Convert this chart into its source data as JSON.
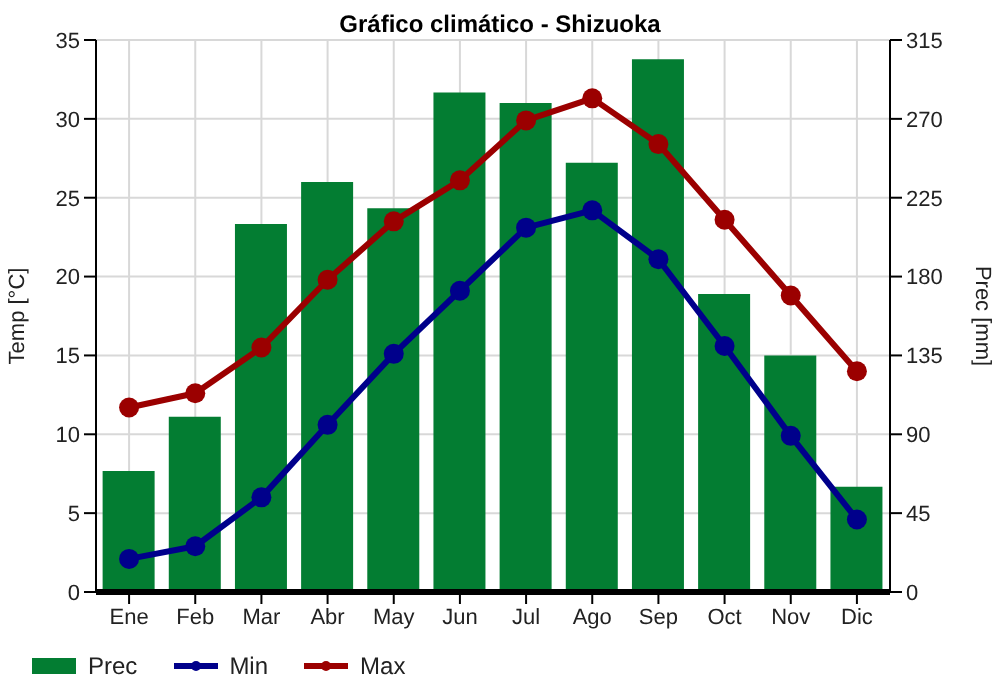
{
  "chart_data": {
    "type": "bar",
    "title": "Gráfico climático - Shizuoka",
    "ylabel": "Temp [°C]",
    "y2label": "Prec [mm]",
    "categories": [
      "Ene",
      "Feb",
      "Mar",
      "Abr",
      "May",
      "Jun",
      "Jul",
      "Ago",
      "Sep",
      "Oct",
      "Nov",
      "Dic"
    ],
    "series": [
      {
        "name": "Prec",
        "axis": "y2",
        "color": "#037d32",
        "values": [
          69,
          100,
          210,
          234,
          219,
          285,
          279,
          245,
          304,
          170,
          135,
          60
        ]
      },
      {
        "name": "Min",
        "type": "line",
        "color": "#00008b",
        "values": [
          2.1,
          2.9,
          6.0,
          10.6,
          15.1,
          19.1,
          23.1,
          24.2,
          21.1,
          15.6,
          9.9,
          4.6
        ]
      },
      {
        "name": "Max",
        "type": "line",
        "color": "#9b0000",
        "values": [
          11.7,
          12.6,
          15.5,
          19.8,
          23.5,
          26.1,
          29.9,
          31.3,
          28.4,
          23.6,
          18.8,
          14.0
        ]
      }
    ],
    "ylim": [
      0,
      35
    ],
    "yticks": [
      0,
      5,
      10,
      15,
      20,
      25,
      30,
      35
    ],
    "y2lim": [
      0,
      315
    ],
    "y2ticks": [
      0,
      45,
      90,
      135,
      180,
      225,
      270,
      315
    ],
    "grid": true,
    "legend": "bottom",
    "marker": "circle",
    "line_style": "solid"
  }
}
